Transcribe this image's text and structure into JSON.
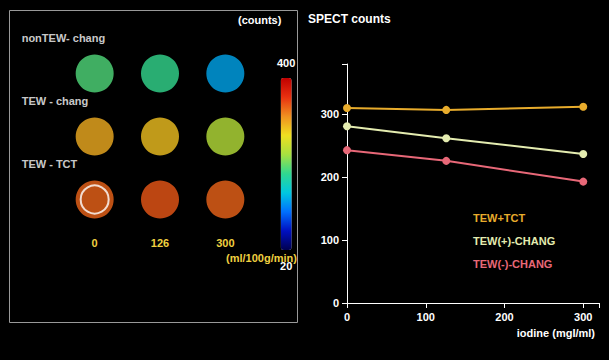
{
  "chart_data": {
    "type": "line",
    "title": "SPECT counts",
    "x_label": "iodine (mgI/ml)",
    "x": [
      0,
      126,
      300
    ],
    "series": [
      {
        "name": "TEW+TCT",
        "color": "#e8ac2c",
        "values": [
          310,
          307,
          312
        ]
      },
      {
        "name": "TEW(+)-CHANG",
        "color": "#e4ecb0",
        "values": [
          281,
          262,
          237
        ]
      },
      {
        "name": "TEW(-)-CHANG",
        "color": "#e86878",
        "values": [
          243,
          226,
          193
        ]
      }
    ],
    "xlim": [
      0,
      320
    ],
    "xticks": [
      0,
      100,
      200,
      300
    ],
    "ylim": [
      0,
      380
    ],
    "yticks": [
      0,
      100,
      200,
      300
    ],
    "marker": "circle",
    "legend": "right",
    "grid": false
  },
  "image_panel": {
    "rows": [
      "nonTEW- chang",
      "TEW - chang",
      "TEW - TCT"
    ],
    "columns": [
      0,
      126,
      300
    ],
    "columns_unit": "(ml/100g/min)",
    "cells": [
      [
        200,
        190,
        130
      ],
      [
        300,
        290,
        240
      ],
      [
        335,
        340,
        335
      ]
    ],
    "colorbar": {
      "label": "(counts)",
      "range": [
        20,
        400
      ],
      "ticks": [
        20,
        400
      ]
    }
  }
}
